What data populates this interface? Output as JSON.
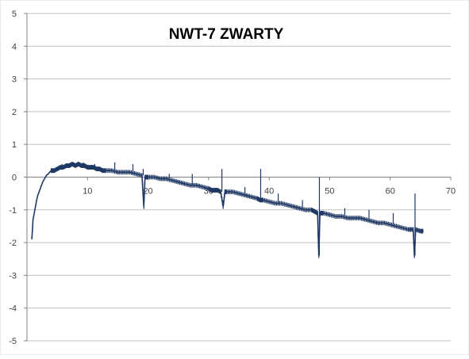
{
  "chart_data": {
    "type": "line",
    "title": "NWT-7 ZWARTY",
    "xlabel": "",
    "ylabel": "",
    "xlim": [
      0,
      70
    ],
    "ylim": [
      -5,
      5
    ],
    "x_ticks": [
      0,
      10,
      20,
      30,
      40,
      50,
      60,
      70
    ],
    "y_ticks": [
      5,
      4,
      3,
      2,
      1,
      0,
      -1,
      -2,
      -3,
      -4,
      -5
    ],
    "x_tick_labels": [
      "0",
      "10",
      "20",
      "30",
      "40",
      "50",
      "60",
      "70"
    ],
    "y_tick_labels": [
      "5",
      "4",
      "3",
      "2",
      "1",
      "0",
      "-1",
      "-2",
      "-3",
      "-4",
      "-5"
    ],
    "grid": "horizontal",
    "legend": "none",
    "colors": {
      "series": "#1f3864",
      "grid": "#c0c0c0",
      "axis": "#808080"
    },
    "series": [
      {
        "values": [
          [
            0.8,
            -1.9
          ],
          [
            0.9,
            -1.6
          ],
          [
            1.0,
            -1.3
          ],
          [
            1.2,
            -1.1
          ],
          [
            1.4,
            -0.9
          ],
          [
            1.6,
            -0.7
          ],
          [
            1.8,
            -0.55
          ],
          [
            2.0,
            -0.45
          ],
          [
            2.3,
            -0.3
          ],
          [
            2.6,
            -0.15
          ],
          [
            2.9,
            -0.05
          ],
          [
            3.2,
            0.05
          ],
          [
            3.5,
            0.1
          ],
          [
            4.0,
            0.2
          ],
          [
            4.5,
            0.2
          ],
          [
            5.0,
            0.25
          ],
          [
            5.5,
            0.3
          ],
          [
            6.0,
            0.3
          ],
          [
            6.5,
            0.35
          ],
          [
            7.0,
            0.35
          ],
          [
            7.5,
            0.4
          ],
          [
            8.0,
            0.35
          ],
          [
            8.5,
            0.4
          ],
          [
            9.0,
            0.35
          ],
          [
            9.5,
            0.35
          ],
          [
            10.0,
            0.3
          ],
          [
            10.5,
            0.3
          ],
          [
            11.0,
            0.3
          ],
          [
            11.5,
            0.25
          ],
          [
            12.0,
            0.25
          ],
          [
            12.5,
            0.2
          ],
          [
            13.0,
            0.2
          ],
          [
            14.0,
            0.2
          ],
          [
            15.0,
            0.15
          ],
          [
            16.0,
            0.15
          ],
          [
            17.0,
            0.15
          ],
          [
            18.0,
            0.1
          ],
          [
            19.0,
            0.05
          ],
          [
            19.3,
            -0.9
          ],
          [
            19.5,
            0.0
          ],
          [
            20.0,
            0.0
          ],
          [
            21.0,
            0.0
          ],
          [
            22.0,
            -0.05
          ],
          [
            23.0,
            -0.05
          ],
          [
            24.0,
            -0.1
          ],
          [
            25.0,
            -0.15
          ],
          [
            26.0,
            -0.2
          ],
          [
            27.0,
            -0.25
          ],
          [
            28.0,
            -0.25
          ],
          [
            29.0,
            -0.3
          ],
          [
            30.0,
            -0.35
          ],
          [
            30.5,
            -0.4
          ],
          [
            31.0,
            -0.4
          ],
          [
            31.5,
            -0.4
          ],
          [
            32.0,
            -0.45
          ],
          [
            32.4,
            -0.9
          ],
          [
            32.7,
            -0.45
          ],
          [
            33.0,
            -0.45
          ],
          [
            34.0,
            -0.45
          ],
          [
            35.0,
            -0.5
          ],
          [
            36.0,
            -0.55
          ],
          [
            37.0,
            -0.6
          ],
          [
            38.0,
            -0.65
          ],
          [
            38.5,
            -0.7
          ],
          [
            39.0,
            -0.7
          ],
          [
            40.0,
            -0.75
          ],
          [
            41.0,
            -0.8
          ],
          [
            42.0,
            -0.8
          ],
          [
            43.0,
            -0.85
          ],
          [
            44.0,
            -0.9
          ],
          [
            45.0,
            -0.95
          ],
          [
            46.0,
            -1.0
          ],
          [
            47.0,
            -1.0
          ],
          [
            47.5,
            -1.05
          ],
          [
            48.0,
            -1.1
          ],
          [
            48.2,
            -2.4
          ],
          [
            48.4,
            -1.1
          ],
          [
            49.0,
            -1.1
          ],
          [
            50.0,
            -1.15
          ],
          [
            51.0,
            -1.2
          ],
          [
            52.0,
            -1.2
          ],
          [
            53.0,
            -1.25
          ],
          [
            54.0,
            -1.25
          ],
          [
            55.0,
            -1.25
          ],
          [
            56.0,
            -1.3
          ],
          [
            57.0,
            -1.35
          ],
          [
            58.0,
            -1.4
          ],
          [
            59.0,
            -1.4
          ],
          [
            60.0,
            -1.45
          ],
          [
            61.0,
            -1.5
          ],
          [
            62.0,
            -1.55
          ],
          [
            63.0,
            -1.6
          ],
          [
            63.8,
            -1.6
          ],
          [
            64.0,
            -2.4
          ],
          [
            64.2,
            -1.6
          ],
          [
            65.0,
            -1.65
          ],
          [
            65.5,
            -1.65
          ]
        ],
        "spikes": [
          [
            5.8,
            0.4
          ],
          [
            7.2,
            0.45
          ],
          [
            9.3,
            0.45
          ],
          [
            11.2,
            0.4
          ],
          [
            14.5,
            0.45
          ],
          [
            17.5,
            0.4
          ],
          [
            19.2,
            0.25
          ],
          [
            23.5,
            0.1
          ],
          [
            27.3,
            0.1
          ],
          [
            32.2,
            0.25
          ],
          [
            36.0,
            -0.3
          ],
          [
            38.6,
            0.25
          ],
          [
            41.5,
            -0.5
          ],
          [
            45.5,
            -0.7
          ],
          [
            48.3,
            0.0
          ],
          [
            52.5,
            -0.95
          ],
          [
            56.5,
            -1.0
          ],
          [
            60.5,
            -1.1
          ],
          [
            64.1,
            -0.5
          ]
        ]
      }
    ]
  }
}
